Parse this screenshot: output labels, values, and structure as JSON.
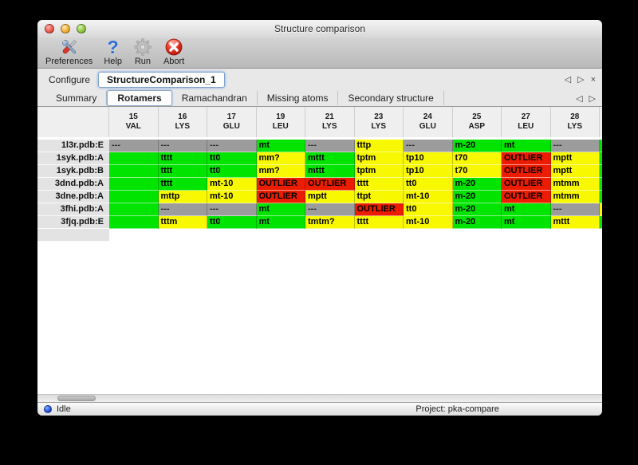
{
  "window": {
    "title": "Structure comparison"
  },
  "toolbar": {
    "items": [
      {
        "label": "Preferences",
        "icon": "tools-icon"
      },
      {
        "label": "Help",
        "icon": "help-icon",
        "glyph": "?"
      },
      {
        "label": "Run",
        "icon": "gear-icon"
      },
      {
        "label": "Abort",
        "icon": "abort-icon"
      }
    ]
  },
  "configure": {
    "label": "Configure",
    "value": "StructureComparison_1",
    "nav": {
      "prev": "◁",
      "next": "▷",
      "close": "×"
    }
  },
  "tabs": {
    "items": [
      "Summary",
      "Rotamers",
      "Ramachandran",
      "Missing atoms",
      "Secondary structure"
    ],
    "selected": "Rotamers",
    "nav": {
      "prev": "◁",
      "next": "▷"
    }
  },
  "colors": {
    "green": "#00e400",
    "yellow": "#f8f800",
    "red": "#ec1c00",
    "gray": "#9c9c9c"
  },
  "table": {
    "columns": [
      {
        "num": "15",
        "name": "VAL"
      },
      {
        "num": "16",
        "name": "LYS"
      },
      {
        "num": "17",
        "name": "GLU"
      },
      {
        "num": "19",
        "name": "LEU"
      },
      {
        "num": "21",
        "name": "LYS"
      },
      {
        "num": "23",
        "name": "LYS"
      },
      {
        "num": "24",
        "name": "GLU"
      },
      {
        "num": "25",
        "name": "ASP"
      },
      {
        "num": "27",
        "name": "LEU"
      },
      {
        "num": "28",
        "name": "LYS"
      }
    ],
    "rows": [
      {
        "label": "1l3r.pdb:E",
        "sliver": "green",
        "cells": [
          {
            "t": "---",
            "c": "gray"
          },
          {
            "t": "---",
            "c": "gray"
          },
          {
            "t": "---",
            "c": "gray"
          },
          {
            "t": "mt",
            "c": "green"
          },
          {
            "t": "---",
            "c": "gray"
          },
          {
            "t": "tttp",
            "c": "yellow"
          },
          {
            "t": "---",
            "c": "gray"
          },
          {
            "t": "m-20",
            "c": "green"
          },
          {
            "t": "mt",
            "c": "green"
          },
          {
            "t": "---",
            "c": "gray"
          }
        ]
      },
      {
        "label": "1syk.pdb:A",
        "sliver": "green",
        "cells": [
          {
            "t": "",
            "c": "green"
          },
          {
            "t": "tttt",
            "c": "green"
          },
          {
            "t": "tt0",
            "c": "green"
          },
          {
            "t": "mm?",
            "c": "yellow"
          },
          {
            "t": "mttt",
            "c": "green"
          },
          {
            "t": "tptm",
            "c": "yellow"
          },
          {
            "t": "tp10",
            "c": "yellow"
          },
          {
            "t": "t70",
            "c": "yellow"
          },
          {
            "t": "OUTLIER",
            "c": "red"
          },
          {
            "t": "mptt",
            "c": "yellow"
          }
        ]
      },
      {
        "label": "1syk.pdb:B",
        "sliver": "green",
        "cells": [
          {
            "t": "",
            "c": "green"
          },
          {
            "t": "tttt",
            "c": "green"
          },
          {
            "t": "tt0",
            "c": "green"
          },
          {
            "t": "mm?",
            "c": "yellow"
          },
          {
            "t": "mttt",
            "c": "green"
          },
          {
            "t": "tptm",
            "c": "yellow"
          },
          {
            "t": "tp10",
            "c": "yellow"
          },
          {
            "t": "t70",
            "c": "yellow"
          },
          {
            "t": "OUTLIER",
            "c": "red"
          },
          {
            "t": "mptt",
            "c": "yellow"
          }
        ]
      },
      {
        "label": "3dnd.pdb:A",
        "sliver": "green",
        "cells": [
          {
            "t": "",
            "c": "green"
          },
          {
            "t": "tttt",
            "c": "green"
          },
          {
            "t": "mt-10",
            "c": "yellow"
          },
          {
            "t": "OUTLIER",
            "c": "red"
          },
          {
            "t": "OUTLIER",
            "c": "red"
          },
          {
            "t": "tttt",
            "c": "yellow"
          },
          {
            "t": "tt0",
            "c": "yellow"
          },
          {
            "t": "m-20",
            "c": "green"
          },
          {
            "t": "OUTLIER",
            "c": "red"
          },
          {
            "t": "mtmm",
            "c": "yellow"
          }
        ]
      },
      {
        "label": "3dne.pdb:A",
        "sliver": "green",
        "cells": [
          {
            "t": "",
            "c": "green"
          },
          {
            "t": "mttp",
            "c": "yellow"
          },
          {
            "t": "mt-10",
            "c": "yellow"
          },
          {
            "t": "OUTLIER",
            "c": "red"
          },
          {
            "t": "mptt",
            "c": "yellow"
          },
          {
            "t": "ttpt",
            "c": "yellow"
          },
          {
            "t": "mt-10",
            "c": "yellow"
          },
          {
            "t": "m-20",
            "c": "green"
          },
          {
            "t": "OUTLIER",
            "c": "red"
          },
          {
            "t": "mtmm",
            "c": "yellow"
          }
        ]
      },
      {
        "label": "3fhi.pdb:A",
        "sliver": "yellow",
        "cells": [
          {
            "t": "",
            "c": "green"
          },
          {
            "t": "---",
            "c": "gray"
          },
          {
            "t": "---",
            "c": "gray"
          },
          {
            "t": "mt",
            "c": "green"
          },
          {
            "t": "---",
            "c": "gray"
          },
          {
            "t": "OUTLIER",
            "c": "red"
          },
          {
            "t": "tt0",
            "c": "yellow"
          },
          {
            "t": "m-20",
            "c": "green"
          },
          {
            "t": "mt",
            "c": "green"
          },
          {
            "t": "---",
            "c": "gray"
          }
        ]
      },
      {
        "label": "3fjq.pdb:E",
        "sliver": "green",
        "cells": [
          {
            "t": "",
            "c": "green"
          },
          {
            "t": "tttm",
            "c": "yellow"
          },
          {
            "t": "tt0",
            "c": "green"
          },
          {
            "t": "mt",
            "c": "green"
          },
          {
            "t": "tmtm?",
            "c": "yellow"
          },
          {
            "t": "tttt",
            "c": "yellow"
          },
          {
            "t": "mt-10",
            "c": "yellow"
          },
          {
            "t": "m-20",
            "c": "green"
          },
          {
            "t": "mt",
            "c": "green"
          },
          {
            "t": "mttt",
            "c": "yellow"
          }
        ]
      }
    ]
  },
  "statusbar": {
    "status": "Idle",
    "project": "Project: pka-compare"
  }
}
